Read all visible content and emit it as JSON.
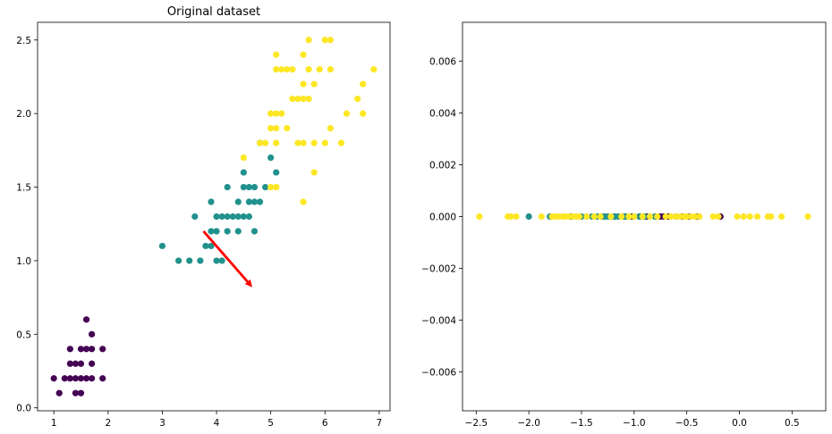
{
  "chart_data": [
    {
      "type": "scatter",
      "title": "Original dataset",
      "xlabel": "",
      "ylabel": "",
      "xlim": [
        0.7,
        7.2
      ],
      "ylim": [
        -0.02,
        2.62
      ],
      "xticks": [
        1,
        2,
        3,
        4,
        5,
        6,
        7
      ],
      "yticks": [
        0.0,
        0.5,
        1.0,
        1.5,
        2.0,
        2.5
      ],
      "xtick_labels": [
        "1",
        "2",
        "3",
        "4",
        "5",
        "6",
        "7"
      ],
      "ytick_labels": [
        "0.0",
        "0.5",
        "1.0",
        "1.5",
        "2.0",
        "2.5"
      ],
      "grid": false,
      "colors": {
        "class_0": "#440154",
        "class_1": "#21918c",
        "class_2": "#fde725",
        "arrow": "#ff0000"
      },
      "series": [
        {
          "class": 0,
          "points": [
            [
              1.0,
              0.2
            ],
            [
              1.1,
              0.1
            ],
            [
              1.2,
              0.2
            ],
            [
              1.3,
              0.2
            ],
            [
              1.3,
              0.3
            ],
            [
              1.3,
              0.4
            ],
            [
              1.4,
              0.1
            ],
            [
              1.4,
              0.2
            ],
            [
              1.4,
              0.3
            ],
            [
              1.5,
              0.1
            ],
            [
              1.5,
              0.2
            ],
            [
              1.5,
              0.3
            ],
            [
              1.5,
              0.4
            ],
            [
              1.6,
              0.2
            ],
            [
              1.6,
              0.4
            ],
            [
              1.6,
              0.6
            ],
            [
              1.7,
              0.2
            ],
            [
              1.7,
              0.3
            ],
            [
              1.7,
              0.4
            ],
            [
              1.7,
              0.5
            ],
            [
              1.9,
              0.2
            ],
            [
              1.9,
              0.4
            ]
          ]
        },
        {
          "class": 1,
          "points": [
            [
              3.0,
              1.1
            ],
            [
              3.3,
              1.0
            ],
            [
              3.5,
              1.0
            ],
            [
              3.6,
              1.3
            ],
            [
              3.7,
              1.0
            ],
            [
              3.8,
              1.1
            ],
            [
              3.9,
              1.1
            ],
            [
              3.9,
              1.2
            ],
            [
              3.9,
              1.4
            ],
            [
              4.0,
              1.0
            ],
            [
              4.0,
              1.2
            ],
            [
              4.0,
              1.3
            ],
            [
              4.1,
              1.0
            ],
            [
              4.1,
              1.3
            ],
            [
              4.2,
              1.2
            ],
            [
              4.2,
              1.3
            ],
            [
              4.2,
              1.5
            ],
            [
              4.3,
              1.3
            ],
            [
              4.4,
              1.2
            ],
            [
              4.4,
              1.3
            ],
            [
              4.4,
              1.4
            ],
            [
              4.5,
              1.3
            ],
            [
              4.5,
              1.5
            ],
            [
              4.6,
              1.3
            ],
            [
              4.6,
              1.4
            ],
            [
              4.6,
              1.5
            ],
            [
              4.7,
              1.2
            ],
            [
              4.7,
              1.4
            ],
            [
              4.7,
              1.5
            ],
            [
              4.8,
              1.4
            ],
            [
              4.8,
              1.8
            ],
            [
              4.9,
              1.5
            ],
            [
              5.0,
              1.7
            ],
            [
              5.1,
              1.6
            ],
            [
              4.5,
              1.6
            ]
          ]
        },
        {
          "class": 2,
          "points": [
            [
              4.5,
              1.7
            ],
            [
              4.8,
              1.8
            ],
            [
              4.9,
              1.8
            ],
            [
              5.0,
              1.5
            ],
            [
              5.0,
              2.0
            ],
            [
              5.0,
              1.9
            ],
            [
              5.1,
              1.5
            ],
            [
              5.1,
              1.8
            ],
            [
              5.1,
              1.9
            ],
            [
              5.1,
              2.0
            ],
            [
              5.1,
              2.3
            ],
            [
              5.1,
              2.4
            ],
            [
              5.2,
              2.0
            ],
            [
              5.2,
              2.3
            ],
            [
              5.3,
              1.9
            ],
            [
              5.3,
              2.3
            ],
            [
              5.4,
              2.1
            ],
            [
              5.4,
              2.3
            ],
            [
              5.5,
              1.8
            ],
            [
              5.5,
              2.1
            ],
            [
              5.6,
              1.4
            ],
            [
              5.6,
              1.8
            ],
            [
              5.6,
              2.1
            ],
            [
              5.6,
              2.2
            ],
            [
              5.6,
              2.4
            ],
            [
              5.7,
              2.1
            ],
            [
              5.7,
              2.3
            ],
            [
              5.7,
              2.5
            ],
            [
              5.8,
              1.6
            ],
            [
              5.8,
              1.8
            ],
            [
              5.8,
              2.2
            ],
            [
              5.9,
              2.3
            ],
            [
              6.0,
              1.8
            ],
            [
              6.0,
              2.5
            ],
            [
              6.1,
              1.9
            ],
            [
              6.1,
              2.3
            ],
            [
              6.1,
              2.5
            ],
            [
              6.3,
              1.8
            ],
            [
              6.4,
              2.0
            ],
            [
              6.6,
              2.1
            ],
            [
              6.7,
              2.0
            ],
            [
              6.7,
              2.2
            ],
            [
              6.9,
              2.3
            ],
            [
              5.1,
              1.5
            ]
          ]
        }
      ],
      "arrow": {
        "from": [
          3.76,
          1.2
        ],
        "to": [
          4.66,
          0.82
        ]
      }
    },
    {
      "type": "scatter",
      "title": "",
      "xlabel": "",
      "ylabel": "",
      "xlim": [
        -2.63,
        0.82
      ],
      "ylim": [
        -0.0075,
        0.0075
      ],
      "xticks": [
        -2.5,
        -2.0,
        -1.5,
        -1.0,
        -0.5,
        0.0,
        0.5
      ],
      "yticks": [
        -0.006,
        -0.004,
        -0.002,
        0.0,
        0.002,
        0.004,
        0.006
      ],
      "xtick_labels": [
        "−2.5",
        "−2.0",
        "−1.5",
        "−1.0",
        "−0.5",
        "0.0",
        "0.5"
      ],
      "ytick_labels": [
        "−0.006",
        "−0.004",
        "−0.002",
        "0.000",
        "0.002",
        "0.004",
        "0.006"
      ],
      "grid": false,
      "series": [
        {
          "class": 0,
          "points": [
            [
              -1.02,
              0
            ],
            [
              -0.95,
              0
            ],
            [
              -0.88,
              0
            ],
            [
              -0.8,
              0
            ],
            [
              -0.75,
              0
            ],
            [
              -0.68,
              0
            ],
            [
              -0.6,
              0
            ],
            [
              -0.55,
              0
            ],
            [
              -0.48,
              0
            ],
            [
              -0.4,
              0
            ],
            [
              -0.18,
              0
            ],
            [
              -0.72,
              0
            ]
          ]
        },
        {
          "class": 1,
          "points": [
            [
              -2.0,
              0
            ],
            [
              -1.8,
              0
            ],
            [
              -1.6,
              0
            ],
            [
              -1.5,
              0
            ],
            [
              -1.45,
              0
            ],
            [
              -1.4,
              0
            ],
            [
              -1.35,
              0
            ],
            [
              -1.3,
              0
            ],
            [
              -1.25,
              0
            ],
            [
              -1.2,
              0
            ],
            [
              -1.15,
              0
            ],
            [
              -1.1,
              0
            ],
            [
              -1.05,
              0
            ],
            [
              -1.0,
              0
            ],
            [
              -0.95,
              0
            ],
            [
              -0.9,
              0
            ],
            [
              -0.85,
              0
            ],
            [
              -0.8,
              0
            ],
            [
              -1.28,
              0
            ],
            [
              -1.18,
              0
            ],
            [
              -1.08,
              0
            ]
          ]
        },
        {
          "class": 2,
          "points": [
            [
              -2.47,
              0
            ],
            [
              -2.2,
              0
            ],
            [
              -2.17,
              0
            ],
            [
              -2.12,
              0
            ],
            [
              -1.88,
              0
            ],
            [
              -1.78,
              0
            ],
            [
              -1.75,
              0
            ],
            [
              -1.72,
              0
            ],
            [
              -1.68,
              0
            ],
            [
              -1.65,
              0
            ],
            [
              -1.62,
              0
            ],
            [
              -1.58,
              0
            ],
            [
              -1.55,
              0
            ],
            [
              -1.52,
              0
            ],
            [
              -1.45,
              0
            ],
            [
              -1.38,
              0
            ],
            [
              -1.32,
              0
            ],
            [
              -1.22,
              0
            ],
            [
              -1.12,
              0
            ],
            [
              -1.05,
              0
            ],
            [
              -1.0,
              0
            ],
            [
              -0.92,
              0
            ],
            [
              -0.85,
              0
            ],
            [
              -0.78,
              0
            ],
            [
              -0.7,
              0
            ],
            [
              -0.65,
              0
            ],
            [
              -0.6,
              0
            ],
            [
              -0.56,
              0
            ],
            [
              -0.52,
              0
            ],
            [
              -0.5,
              0
            ],
            [
              -0.46,
              0
            ],
            [
              -0.42,
              0
            ],
            [
              -0.38,
              0
            ],
            [
              -0.25,
              0
            ],
            [
              -0.2,
              0
            ],
            [
              -0.02,
              0
            ],
            [
              0.04,
              0
            ],
            [
              0.1,
              0
            ],
            [
              0.17,
              0
            ],
            [
              0.27,
              0
            ],
            [
              0.3,
              0
            ],
            [
              0.4,
              0
            ],
            [
              0.65,
              0
            ]
          ]
        }
      ]
    }
  ]
}
